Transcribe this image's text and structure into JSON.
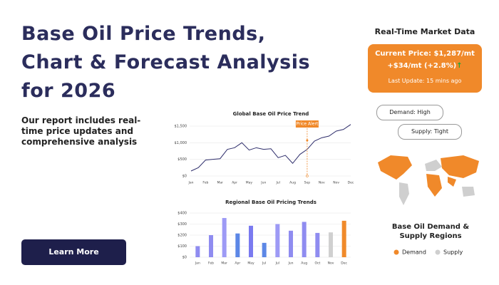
{
  "header": {
    "title": [
      "Base Oil Price Trends,",
      "Chart & Forecast Analysis",
      "for 2026"
    ],
    "description": "Our report includes real-time price updates and comprehensive analysis",
    "button": "Learn More"
  },
  "market": {
    "title": "Real-Time Market Data",
    "current_price": "Current Price: $1,287/mt",
    "change": "+$34/mt (+2.8%)",
    "last_update": "Last Update: 15 mins ago",
    "demand": "Demand: High",
    "supply": "Supply: Tight"
  },
  "map": {
    "title": "Base Oil Demand & Supply Regions",
    "legend": [
      {
        "name": "Demand",
        "color": "#f0892a"
      },
      {
        "name": "Supply",
        "color": "#cfcfcf"
      }
    ]
  },
  "chart_data": [
    {
      "type": "line",
      "title": "Global Base Oil Price Trend",
      "annotation": "Price Alert",
      "categories": [
        "Jan",
        null,
        "Feb",
        null,
        "Mar",
        null,
        "Apr",
        null,
        "May",
        null,
        "Jun",
        null,
        "Jul",
        null,
        "Aug",
        null,
        "Sep",
        null,
        "Nov",
        null,
        "Nov",
        null,
        "Dec"
      ],
      "values": [
        150,
        250,
        480,
        500,
        520,
        800,
        850,
        1000,
        780,
        850,
        800,
        820,
        550,
        620,
        380,
        650,
        800,
        1050,
        1150,
        1200,
        1350,
        1400,
        1550
      ],
      "color": "#2e2d6b",
      "ylim": [
        0,
        1500
      ],
      "yticks": [
        {
          "value": 0,
          "label": "$0"
        },
        {
          "value": 500,
          "label": "$500"
        },
        {
          "value": 1000,
          "label": "$1,000"
        },
        {
          "value": 1500,
          "label": "$1,500"
        }
      ],
      "grid": true
    },
    {
      "type": "bar",
      "title": "Regional Base Oil Pricing Trends",
      "categories": [
        "Jan",
        "Feb",
        "Mar",
        "Apr",
        "May",
        "Jul",
        "Jul",
        "Jun",
        "Aug",
        "Oct",
        "Nov",
        "Dec"
      ],
      "values": [
        100,
        200,
        355,
        215,
        285,
        130,
        300,
        240,
        320,
        220,
        225,
        330
      ],
      "colors": [
        "#8f8cf0",
        "#8f8cf0",
        "#9d9af5",
        "#5c87e6",
        "#7a7af0",
        "#5c87e6",
        "#9d9af5",
        "#8f8cf0",
        "#8f8cf0",
        "#8f8cf0",
        "#d0d0d0",
        "#f08a2a"
      ],
      "ylim": [
        0,
        400
      ],
      "yticks": [
        {
          "value": 0,
          "label": "$0"
        },
        {
          "value": 100,
          "label": "$100"
        },
        {
          "value": 200,
          "label": "$200"
        },
        {
          "value": 300,
          "label": "$300"
        },
        {
          "value": 400,
          "label": "$400"
        }
      ],
      "grid": true
    }
  ]
}
